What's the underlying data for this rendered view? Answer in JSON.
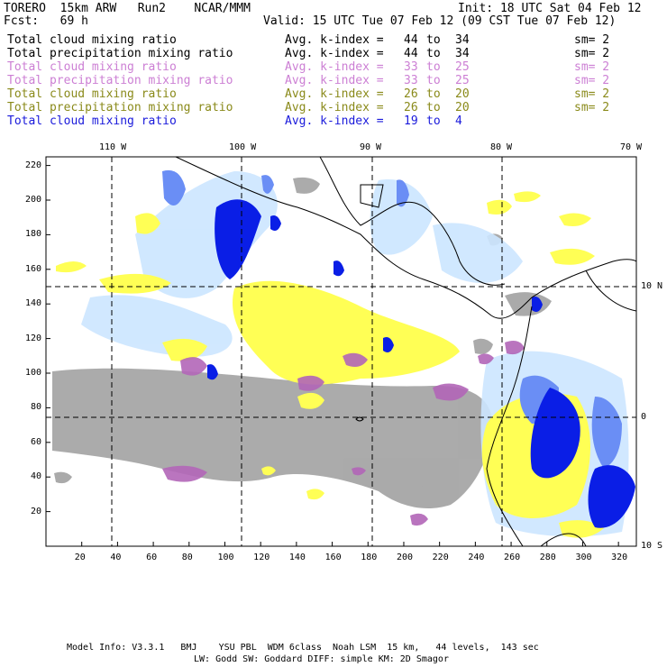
{
  "header": {
    "model": "TORERO  15km ARW   Run2    NCAR/MMM",
    "init": "Init: 18 UTC Sat 04 Feb 12",
    "fcst": "Fcst:   69 h",
    "valid": "Valid: 15 UTC Tue 07 Feb 12 (09 CST Tue 07 Feb 12)"
  },
  "variables": [
    {
      "name": "Total cloud mixing ratio",
      "kindex_label": "Avg. k-index =",
      "k_from": "44",
      "to_word": "to",
      "k_to": "34",
      "smooth": "sm= 2",
      "color": "#000000"
    },
    {
      "name": "Total precipitation mixing ratio",
      "kindex_label": "Avg. k-index =",
      "k_from": "44",
      "to_word": "to",
      "k_to": "34",
      "smooth": "sm= 2",
      "color": "#000000"
    },
    {
      "name": "Total cloud mixing ratio",
      "kindex_label": "Avg. k-index =",
      "k_from": "33",
      "to_word": "to",
      "k_to": "25",
      "smooth": "sm= 2",
      "color": "#cc7fd4"
    },
    {
      "name": "Total precipitation mixing ratio",
      "kindex_label": "Avg. k-index =",
      "k_from": "33",
      "to_word": "to",
      "k_to": "25",
      "smooth": "sm= 2",
      "color": "#cc7fd4"
    },
    {
      "name": "Total cloud mixing ratio",
      "kindex_label": "Avg. k-index =",
      "k_from": "26",
      "to_word": "to",
      "k_to": "20",
      "smooth": "sm= 2",
      "color": "#8a8a1a"
    },
    {
      "name": "Total precipitation mixing ratio",
      "kindex_label": "Avg. k-index =",
      "k_from": "26",
      "to_word": "to",
      "k_to": "20",
      "smooth": "sm= 2",
      "color": "#8a8a1a"
    },
    {
      "name": "Total cloud mixing ratio",
      "kindex_label": "Avg. k-index =",
      "k_from": "19",
      "to_word": "to",
      "k_to": "4",
      "smooth": "",
      "color": "#1a1adb"
    }
  ],
  "map": {
    "top_lon_labels": [
      "110 W",
      "100 W",
      "90 W",
      "80 W",
      "70 W"
    ],
    "right_lat_labels": [
      "10 N",
      "0",
      "10 S"
    ],
    "x_ticks": [
      "20",
      "40",
      "60",
      "80",
      "100",
      "120",
      "140",
      "160",
      "180",
      "200",
      "220",
      "240",
      "260",
      "280",
      "300",
      "320"
    ],
    "y_ticks": [
      "220",
      "200",
      "180",
      "160",
      "140",
      "120",
      "100",
      "80",
      "60",
      "40",
      "20"
    ],
    "colors": {
      "gray_cloud": "#a6a6a6",
      "yellow_precip": "#ffff55",
      "purple": "#b266b8",
      "light_blue": "#cce6ff",
      "mid_blue": "#6a8ef5",
      "dark_blue": "#0a1ee6",
      "coast": "#000000"
    }
  },
  "footer": {
    "line1": "Model Info: V3.3.1   BMJ    YSU PBL  WDM 6class  Noah LSM  15 km,   44 levels,  143 sec",
    "line2": "LW: Godd SW: Goddard DIFF: simple KM: 2D Smagor"
  }
}
